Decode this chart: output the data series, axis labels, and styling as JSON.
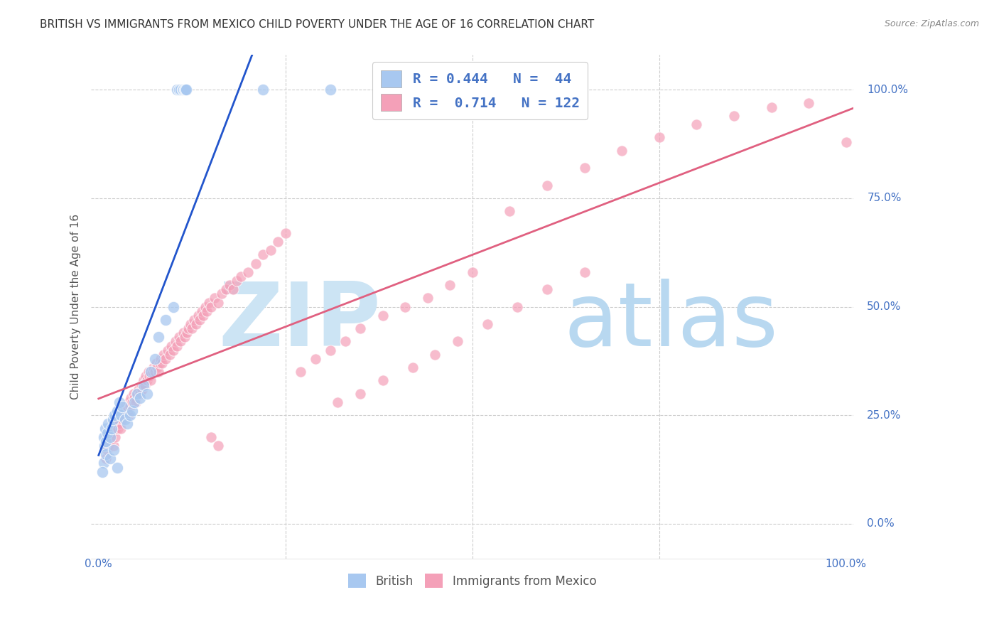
{
  "title": "BRITISH VS IMMIGRANTS FROM MEXICO CHILD POVERTY UNDER THE AGE OF 16 CORRELATION CHART",
  "source": "Source: ZipAtlas.com",
  "ylabel": "Child Poverty Under the Age of 16",
  "ylabel_ticks": [
    "0.0%",
    "25.0%",
    "50.0%",
    "75.0%",
    "100.0%"
  ],
  "legend_british_R": "0.444",
  "legend_british_N": "44",
  "legend_mexico_R": "0.714",
  "legend_mexico_N": "122",
  "british_color": "#a8c8f0",
  "mexico_color": "#f4a0b8",
  "british_line_color": "#2255cc",
  "mexico_line_color": "#e06080",
  "watermark_zip_color": "#cce0f0",
  "watermark_atlas_color": "#b8d8f0",
  "background_color": "#ffffff",
  "grid_color": "#cccccc",
  "title_color": "#333333",
  "axis_label_color": "#4472c4",
  "xlim": [
    0,
    1
  ],
  "ylim": [
    -0.05,
    1.05
  ],
  "british_x": [
    0.105,
    0.108,
    0.11,
    0.112,
    0.113,
    0.115,
    0.116,
    0.117,
    0.22,
    0.31,
    0.007,
    0.008,
    0.009,
    0.01,
    0.012,
    0.013,
    0.015,
    0.017,
    0.019,
    0.021,
    0.025,
    0.028,
    0.03,
    0.032,
    0.035,
    0.038,
    0.042,
    0.045,
    0.048,
    0.052,
    0.055,
    0.06,
    0.065,
    0.07,
    0.075,
    0.08,
    0.09,
    0.1,
    0.007,
    0.01,
    0.015,
    0.02,
    0.025,
    0.005
  ],
  "british_y": [
    1.0,
    1.0,
    1.0,
    1.0,
    1.0,
    1.0,
    1.0,
    1.0,
    1.0,
    1.0,
    0.2,
    0.18,
    0.22,
    0.19,
    0.21,
    0.23,
    0.2,
    0.22,
    0.24,
    0.25,
    0.26,
    0.28,
    0.25,
    0.27,
    0.24,
    0.23,
    0.25,
    0.26,
    0.28,
    0.3,
    0.29,
    0.32,
    0.3,
    0.35,
    0.38,
    0.43,
    0.47,
    0.5,
    0.14,
    0.16,
    0.15,
    0.17,
    0.13,
    0.12
  ],
  "mexico_x": [
    0.01,
    0.012,
    0.013,
    0.015,
    0.017,
    0.018,
    0.02,
    0.02,
    0.022,
    0.023,
    0.025,
    0.026,
    0.027,
    0.028,
    0.03,
    0.03,
    0.032,
    0.033,
    0.035,
    0.035,
    0.038,
    0.04,
    0.04,
    0.042,
    0.043,
    0.045,
    0.047,
    0.048,
    0.05,
    0.052,
    0.053,
    0.055,
    0.057,
    0.058,
    0.06,
    0.062,
    0.063,
    0.065,
    0.067,
    0.068,
    0.07,
    0.072,
    0.073,
    0.075,
    0.077,
    0.078,
    0.08,
    0.082,
    0.083,
    0.085,
    0.087,
    0.09,
    0.092,
    0.095,
    0.097,
    0.1,
    0.103,
    0.105,
    0.108,
    0.11,
    0.113,
    0.115,
    0.118,
    0.12,
    0.123,
    0.125,
    0.128,
    0.13,
    0.133,
    0.135,
    0.138,
    0.14,
    0.143,
    0.145,
    0.148,
    0.15,
    0.155,
    0.16,
    0.165,
    0.17,
    0.175,
    0.18,
    0.185,
    0.19,
    0.2,
    0.21,
    0.22,
    0.23,
    0.24,
    0.25,
    0.27,
    0.29,
    0.31,
    0.33,
    0.35,
    0.38,
    0.41,
    0.44,
    0.47,
    0.5,
    0.55,
    0.6,
    0.65,
    0.7,
    0.75,
    0.8,
    0.85,
    0.9,
    0.95,
    1.0,
    0.32,
    0.35,
    0.38,
    0.42,
    0.45,
    0.48,
    0.52,
    0.56,
    0.6,
    0.65,
    0.15,
    0.16
  ],
  "mexico_y": [
    0.15,
    0.17,
    0.18,
    0.19,
    0.2,
    0.21,
    0.18,
    0.22,
    0.2,
    0.22,
    0.23,
    0.22,
    0.24,
    0.23,
    0.22,
    0.25,
    0.24,
    0.26,
    0.25,
    0.27,
    0.26,
    0.25,
    0.28,
    0.27,
    0.29,
    0.28,
    0.3,
    0.29,
    0.28,
    0.3,
    0.31,
    0.3,
    0.32,
    0.31,
    0.33,
    0.32,
    0.34,
    0.33,
    0.35,
    0.34,
    0.33,
    0.35,
    0.36,
    0.35,
    0.37,
    0.36,
    0.35,
    0.37,
    0.38,
    0.37,
    0.39,
    0.38,
    0.4,
    0.39,
    0.41,
    0.4,
    0.42,
    0.41,
    0.43,
    0.42,
    0.44,
    0.43,
    0.44,
    0.45,
    0.46,
    0.45,
    0.47,
    0.46,
    0.48,
    0.47,
    0.49,
    0.48,
    0.5,
    0.49,
    0.51,
    0.5,
    0.52,
    0.51,
    0.53,
    0.54,
    0.55,
    0.54,
    0.56,
    0.57,
    0.58,
    0.6,
    0.62,
    0.63,
    0.65,
    0.67,
    0.35,
    0.38,
    0.4,
    0.42,
    0.45,
    0.48,
    0.5,
    0.52,
    0.55,
    0.58,
    0.72,
    0.78,
    0.82,
    0.86,
    0.89,
    0.92,
    0.94,
    0.96,
    0.97,
    0.88,
    0.28,
    0.3,
    0.33,
    0.36,
    0.39,
    0.42,
    0.46,
    0.5,
    0.54,
    0.58,
    0.2,
    0.18
  ]
}
